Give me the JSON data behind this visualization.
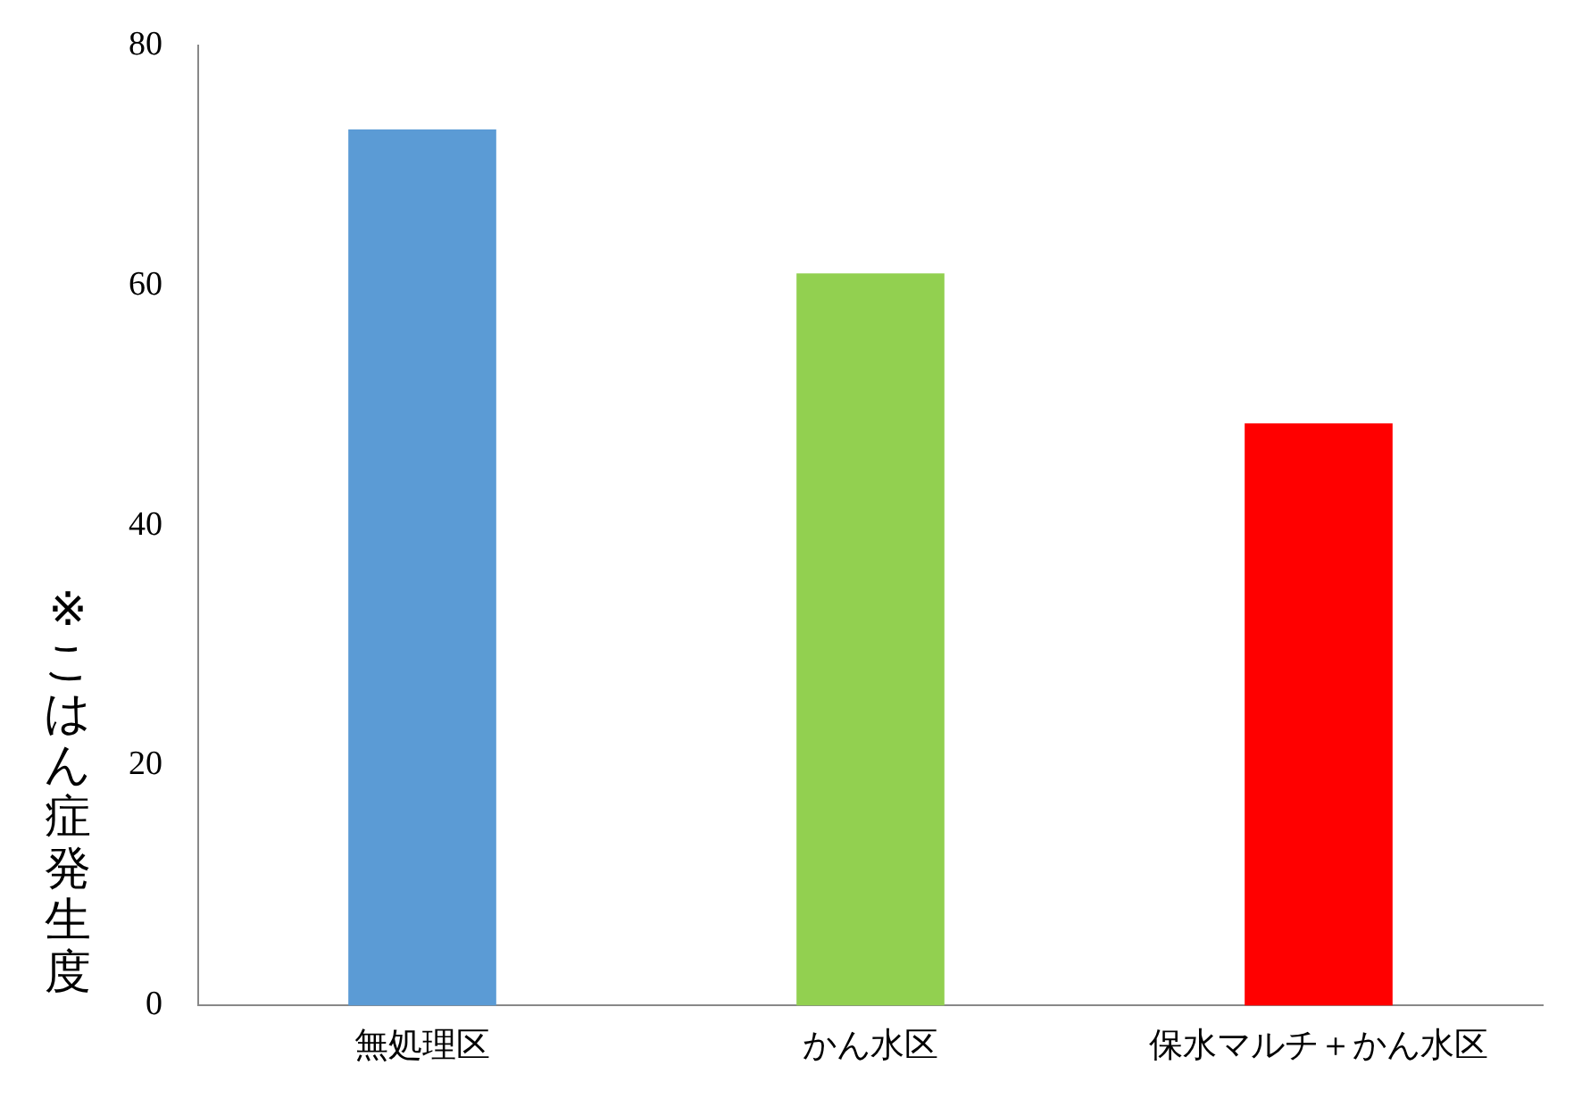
{
  "chart_data": {
    "type": "bar",
    "ylabel": "※こはん症発生度",
    "categories": [
      "無処理区",
      "かん水区",
      "保水マルチ＋かん水区"
    ],
    "values": [
      73,
      61,
      48.5
    ],
    "colors": [
      "#5b9bd5",
      "#92d050",
      "#ff0000"
    ],
    "ylim": [
      0,
      80
    ],
    "yticks": [
      0,
      20,
      40,
      60,
      80
    ],
    "grid": false,
    "legend": false
  }
}
